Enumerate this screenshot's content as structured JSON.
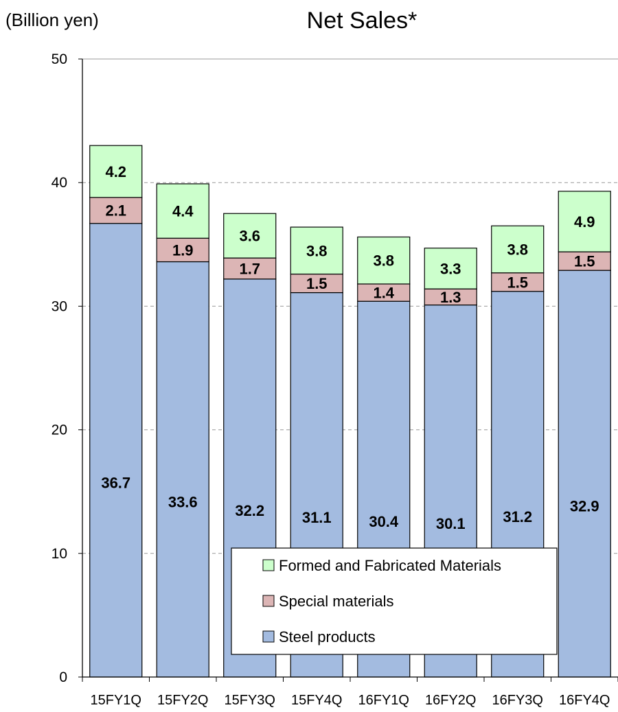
{
  "chart_data": {
    "type": "bar",
    "stacked": true,
    "title": "Net Sales*",
    "ylabel": "(Billion yen)",
    "xlabel": "",
    "ylim": [
      0,
      50
    ],
    "yticks": [
      0,
      10,
      20,
      30,
      40,
      50
    ],
    "grid": "horizontal dashed",
    "legend_position": "bottom-right inside",
    "categories": [
      "15FY1Q",
      "15FY2Q",
      "15FY3Q",
      "15FY4Q",
      "16FY1Q",
      "16FY2Q",
      "16FY3Q",
      "16FY4Q"
    ],
    "series": [
      {
        "name": "Steel products",
        "color": "#a3bbe0",
        "values": [
          36.7,
          33.6,
          32.2,
          31.1,
          30.4,
          30.1,
          31.2,
          32.9
        ],
        "labels": [
          "36.7",
          "33.6",
          "32.2",
          "31.1",
          "30.4",
          "30.1",
          "31.2",
          "32.9"
        ]
      },
      {
        "name": "Special materials",
        "color": "#dcb5b5",
        "values": [
          2.1,
          1.9,
          1.7,
          1.5,
          1.4,
          1.3,
          1.5,
          1.5
        ],
        "labels": [
          "2.1",
          "1.9",
          "1.7",
          "1.5",
          "1.4",
          "1.3",
          "1.5",
          "1.5"
        ]
      },
      {
        "name": "Formed and Fabricated Materials",
        "color": "#ccffcc",
        "values": [
          4.2,
          4.4,
          3.6,
          3.8,
          3.8,
          3.3,
          3.8,
          4.9
        ],
        "labels": [
          "4.2",
          "4.4",
          "3.6",
          "3.8",
          "3.8",
          "3.3",
          "3.8",
          "4.9"
        ]
      }
    ],
    "legend_order": [
      "Formed and Fabricated Materials",
      "Special materials",
      "Steel products"
    ]
  }
}
